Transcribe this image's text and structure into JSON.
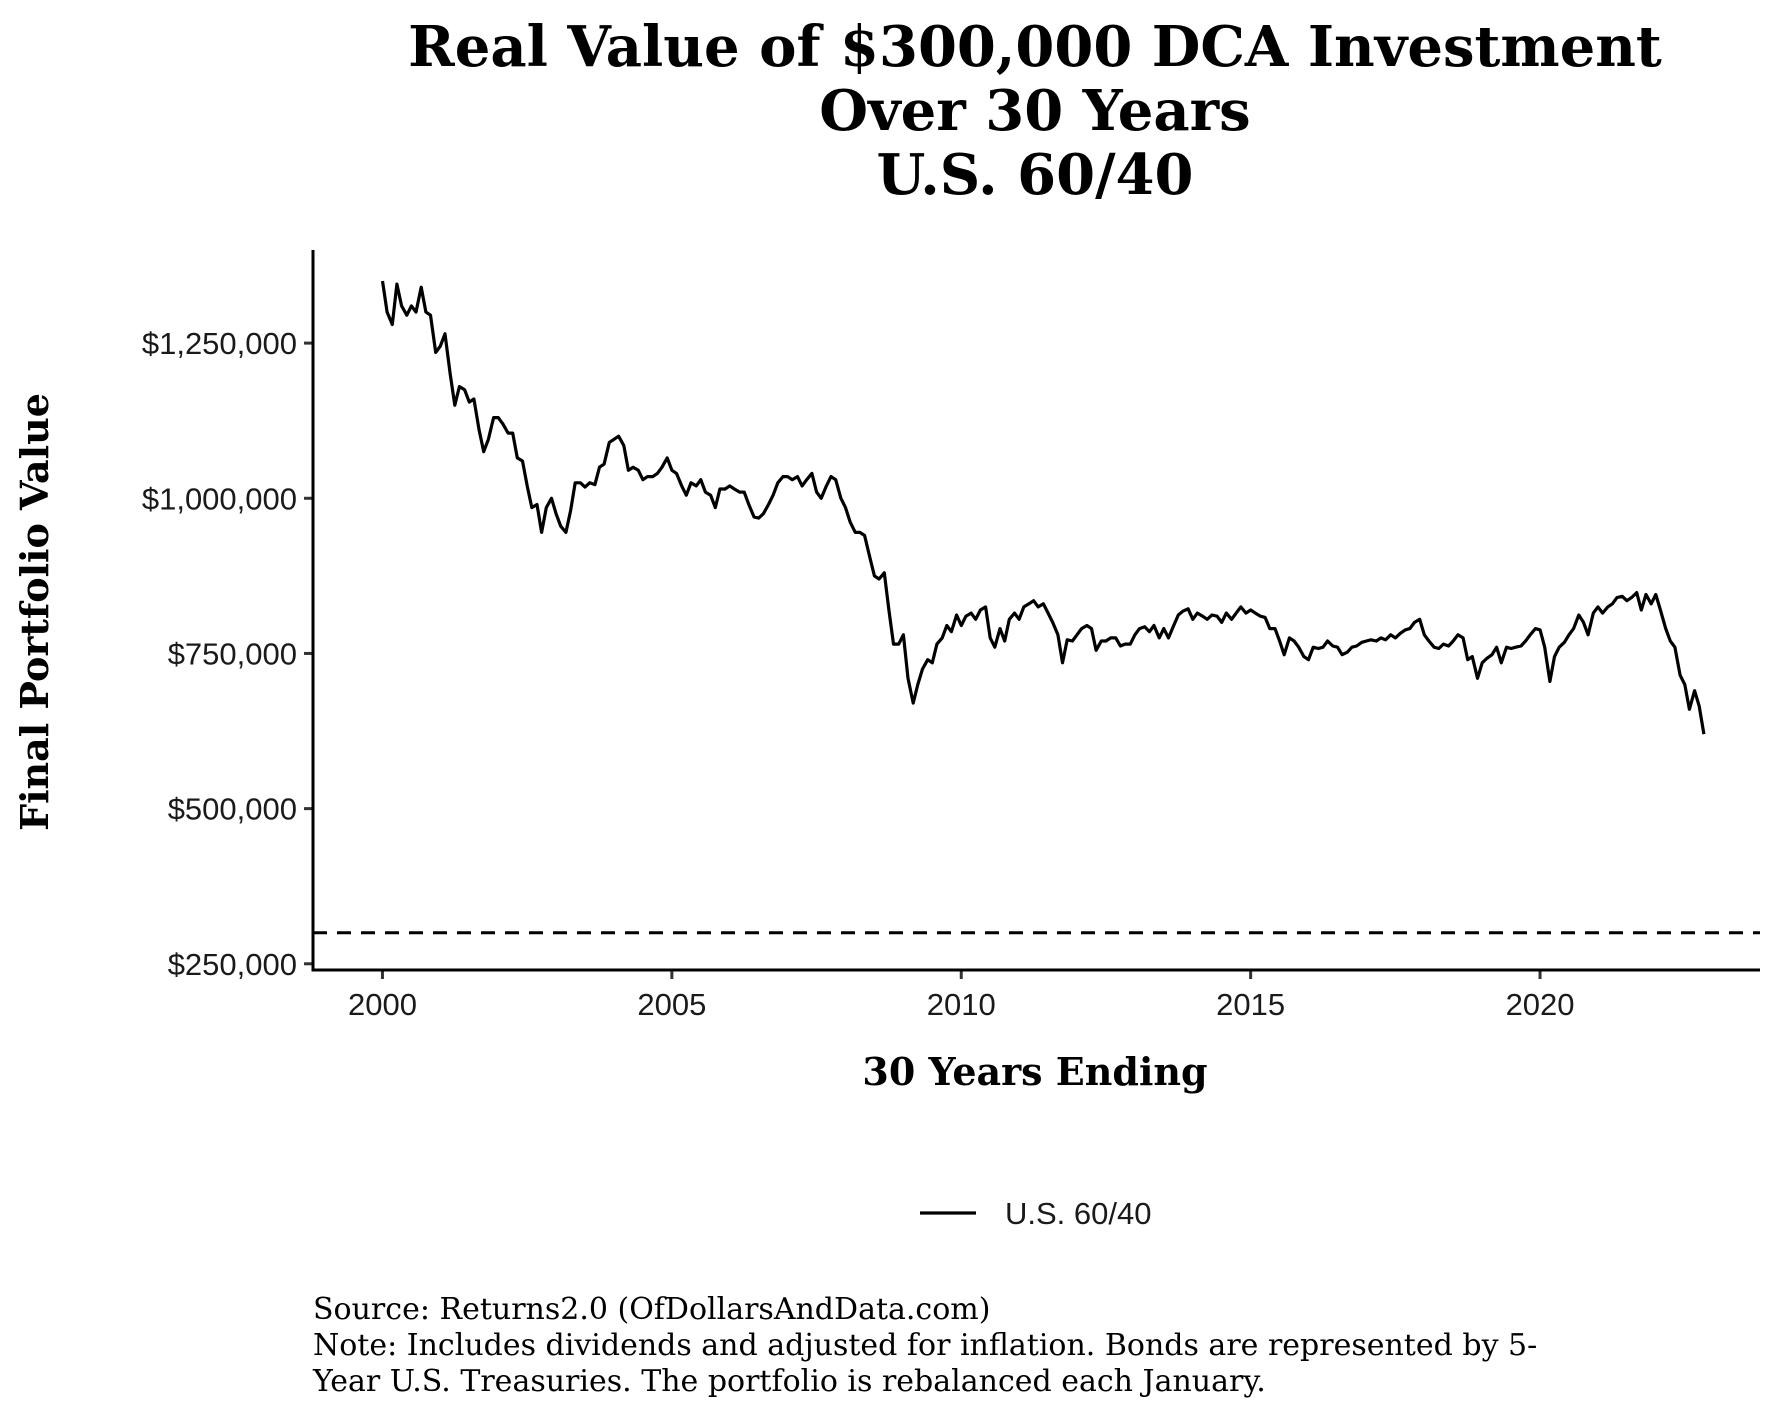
{
  "chart_data": {
    "type": "line",
    "title": [
      "Real Value of $300,000 DCA Investment",
      "Over 30 Years",
      "U.S. 60/40"
    ],
    "xlabel": "30 Years Ending",
    "ylabel": "Final Portfolio Value",
    "xlim": [
      1998.8,
      2023.8
    ],
    "ylim": [
      240000,
      1400000
    ],
    "x_ticks": [
      2000,
      2005,
      2010,
      2015,
      2020
    ],
    "x_tick_labels": [
      "2000",
      "2005",
      "2010",
      "2015",
      "2020"
    ],
    "y_ticks": [
      250000,
      500000,
      750000,
      1000000,
      1250000
    ],
    "y_tick_labels": [
      "$250,000",
      "$500,000",
      "$750,000",
      "$1,000,000",
      "$1,250,000"
    ],
    "grid": false,
    "legend": {
      "position": "bottom",
      "entries": [
        "U.S. 60/40"
      ]
    },
    "reference_line": {
      "y": 300000,
      "style": "dashed"
    },
    "series": [
      {
        "name": "U.S. 60/40",
        "color": "#000000",
        "points": [
          [
            2000.0,
            1350000
          ],
          [
            2000.08,
            1300000
          ],
          [
            2000.17,
            1280000
          ],
          [
            2000.25,
            1345000
          ],
          [
            2000.33,
            1310000
          ],
          [
            2000.42,
            1295000
          ],
          [
            2000.5,
            1310000
          ],
          [
            2000.58,
            1300000
          ],
          [
            2000.67,
            1340000
          ],
          [
            2000.75,
            1300000
          ],
          [
            2000.83,
            1295000
          ],
          [
            2000.92,
            1235000
          ],
          [
            2001.0,
            1245000
          ],
          [
            2001.08,
            1265000
          ],
          [
            2001.17,
            1200000
          ],
          [
            2001.25,
            1150000
          ],
          [
            2001.33,
            1180000
          ],
          [
            2001.42,
            1175000
          ],
          [
            2001.5,
            1155000
          ],
          [
            2001.58,
            1160000
          ],
          [
            2001.67,
            1110000
          ],
          [
            2001.75,
            1075000
          ],
          [
            2001.83,
            1095000
          ],
          [
            2001.92,
            1130000
          ],
          [
            2002.0,
            1130000
          ],
          [
            2002.08,
            1120000
          ],
          [
            2002.17,
            1105000
          ],
          [
            2002.25,
            1105000
          ],
          [
            2002.33,
            1065000
          ],
          [
            2002.42,
            1060000
          ],
          [
            2002.5,
            1020000
          ],
          [
            2002.58,
            985000
          ],
          [
            2002.67,
            990000
          ],
          [
            2002.75,
            945000
          ],
          [
            2002.83,
            985000
          ],
          [
            2002.92,
            1000000
          ],
          [
            2003.0,
            975000
          ],
          [
            2003.08,
            955000
          ],
          [
            2003.17,
            945000
          ],
          [
            2003.25,
            980000
          ],
          [
            2003.33,
            1025000
          ],
          [
            2003.42,
            1025000
          ],
          [
            2003.5,
            1018000
          ],
          [
            2003.58,
            1025000
          ],
          [
            2003.67,
            1022000
          ],
          [
            2003.75,
            1050000
          ],
          [
            2003.83,
            1055000
          ],
          [
            2003.92,
            1090000
          ],
          [
            2004.0,
            1095000
          ],
          [
            2004.08,
            1100000
          ],
          [
            2004.17,
            1085000
          ],
          [
            2004.25,
            1045000
          ],
          [
            2004.33,
            1050000
          ],
          [
            2004.42,
            1045000
          ],
          [
            2004.5,
            1030000
          ],
          [
            2004.58,
            1035000
          ],
          [
            2004.67,
            1035000
          ],
          [
            2004.75,
            1040000
          ],
          [
            2004.83,
            1050000
          ],
          [
            2004.92,
            1065000
          ],
          [
            2005.0,
            1045000
          ],
          [
            2005.08,
            1040000
          ],
          [
            2005.17,
            1020000
          ],
          [
            2005.25,
            1005000
          ],
          [
            2005.33,
            1025000
          ],
          [
            2005.42,
            1020000
          ],
          [
            2005.5,
            1030000
          ],
          [
            2005.58,
            1010000
          ],
          [
            2005.67,
            1005000
          ],
          [
            2005.75,
            985000
          ],
          [
            2005.83,
            1015000
          ],
          [
            2005.92,
            1015000
          ],
          [
            2006.0,
            1020000
          ],
          [
            2006.08,
            1015000
          ],
          [
            2006.17,
            1010000
          ],
          [
            2006.25,
            1010000
          ],
          [
            2006.33,
            990000
          ],
          [
            2006.42,
            970000
          ],
          [
            2006.5,
            968000
          ],
          [
            2006.58,
            975000
          ],
          [
            2006.67,
            990000
          ],
          [
            2006.75,
            1005000
          ],
          [
            2006.83,
            1025000
          ],
          [
            2006.92,
            1035000
          ],
          [
            2007.0,
            1035000
          ],
          [
            2007.08,
            1030000
          ],
          [
            2007.17,
            1035000
          ],
          [
            2007.25,
            1020000
          ],
          [
            2007.33,
            1030000
          ],
          [
            2007.42,
            1040000
          ],
          [
            2007.5,
            1010000
          ],
          [
            2007.58,
            1000000
          ],
          [
            2007.67,
            1020000
          ],
          [
            2007.75,
            1035000
          ],
          [
            2007.83,
            1030000
          ],
          [
            2007.92,
            1000000
          ],
          [
            2008.0,
            985000
          ],
          [
            2008.08,
            962000
          ],
          [
            2008.17,
            945000
          ],
          [
            2008.25,
            945000
          ],
          [
            2008.33,
            940000
          ],
          [
            2008.42,
            905000
          ],
          [
            2008.5,
            875000
          ],
          [
            2008.58,
            870000
          ],
          [
            2008.67,
            880000
          ],
          [
            2008.75,
            820000
          ],
          [
            2008.83,
            765000
          ],
          [
            2008.92,
            765000
          ],
          [
            2009.0,
            780000
          ],
          [
            2009.08,
            710000
          ],
          [
            2009.17,
            670000
          ],
          [
            2009.25,
            700000
          ],
          [
            2009.33,
            725000
          ],
          [
            2009.42,
            740000
          ],
          [
            2009.5,
            735000
          ],
          [
            2009.58,
            765000
          ],
          [
            2009.67,
            775000
          ],
          [
            2009.75,
            795000
          ],
          [
            2009.83,
            785000
          ],
          [
            2009.92,
            812000
          ],
          [
            2010.0,
            795000
          ],
          [
            2010.08,
            810000
          ],
          [
            2010.17,
            815000
          ],
          [
            2010.25,
            805000
          ],
          [
            2010.33,
            820000
          ],
          [
            2010.42,
            825000
          ],
          [
            2010.5,
            775000
          ],
          [
            2010.58,
            760000
          ],
          [
            2010.67,
            790000
          ],
          [
            2010.75,
            770000
          ],
          [
            2010.83,
            805000
          ],
          [
            2010.92,
            815000
          ],
          [
            2011.0,
            805000
          ],
          [
            2011.08,
            825000
          ],
          [
            2011.17,
            830000
          ],
          [
            2011.25,
            835000
          ],
          [
            2011.33,
            825000
          ],
          [
            2011.42,
            830000
          ],
          [
            2011.5,
            815000
          ],
          [
            2011.58,
            800000
          ],
          [
            2011.67,
            780000
          ],
          [
            2011.75,
            735000
          ],
          [
            2011.83,
            772000
          ],
          [
            2011.92,
            770000
          ],
          [
            2012.0,
            780000
          ],
          [
            2012.08,
            790000
          ],
          [
            2012.17,
            795000
          ],
          [
            2012.25,
            790000
          ],
          [
            2012.33,
            755000
          ],
          [
            2012.42,
            770000
          ],
          [
            2012.5,
            770000
          ],
          [
            2012.58,
            775000
          ],
          [
            2012.67,
            775000
          ],
          [
            2012.75,
            762000
          ],
          [
            2012.83,
            765000
          ],
          [
            2012.92,
            765000
          ],
          [
            2013.0,
            780000
          ],
          [
            2013.08,
            790000
          ],
          [
            2013.17,
            793000
          ],
          [
            2013.25,
            785000
          ],
          [
            2013.33,
            795000
          ],
          [
            2013.42,
            775000
          ],
          [
            2013.5,
            790000
          ],
          [
            2013.58,
            775000
          ],
          [
            2013.67,
            795000
          ],
          [
            2013.75,
            812000
          ],
          [
            2013.83,
            818000
          ],
          [
            2013.92,
            822000
          ],
          [
            2014.0,
            805000
          ],
          [
            2014.08,
            815000
          ],
          [
            2014.17,
            810000
          ],
          [
            2014.25,
            805000
          ],
          [
            2014.33,
            812000
          ],
          [
            2014.42,
            810000
          ],
          [
            2014.5,
            800000
          ],
          [
            2014.58,
            815000
          ],
          [
            2014.67,
            805000
          ],
          [
            2014.75,
            815000
          ],
          [
            2014.83,
            825000
          ],
          [
            2014.92,
            815000
          ],
          [
            2015.0,
            820000
          ],
          [
            2015.08,
            815000
          ],
          [
            2015.17,
            810000
          ],
          [
            2015.25,
            808000
          ],
          [
            2015.33,
            790000
          ],
          [
            2015.42,
            790000
          ],
          [
            2015.5,
            770000
          ],
          [
            2015.58,
            748000
          ],
          [
            2015.67,
            775000
          ],
          [
            2015.75,
            770000
          ],
          [
            2015.83,
            760000
          ],
          [
            2015.92,
            745000
          ],
          [
            2016.0,
            740000
          ],
          [
            2016.08,
            760000
          ],
          [
            2016.17,
            758000
          ],
          [
            2016.25,
            760000
          ],
          [
            2016.33,
            770000
          ],
          [
            2016.42,
            762000
          ],
          [
            2016.5,
            760000
          ],
          [
            2016.58,
            748000
          ],
          [
            2016.67,
            752000
          ],
          [
            2016.75,
            760000
          ],
          [
            2016.83,
            762000
          ],
          [
            2016.92,
            768000
          ],
          [
            2017.0,
            770000
          ],
          [
            2017.08,
            772000
          ],
          [
            2017.17,
            770000
          ],
          [
            2017.25,
            775000
          ],
          [
            2017.33,
            772000
          ],
          [
            2017.42,
            780000
          ],
          [
            2017.5,
            775000
          ],
          [
            2017.58,
            782000
          ],
          [
            2017.67,
            788000
          ],
          [
            2017.75,
            790000
          ],
          [
            2017.83,
            800000
          ],
          [
            2017.92,
            805000
          ],
          [
            2018.0,
            780000
          ],
          [
            2018.08,
            770000
          ],
          [
            2018.17,
            760000
          ],
          [
            2018.25,
            758000
          ],
          [
            2018.33,
            765000
          ],
          [
            2018.42,
            762000
          ],
          [
            2018.5,
            770000
          ],
          [
            2018.58,
            780000
          ],
          [
            2018.67,
            775000
          ],
          [
            2018.75,
            740000
          ],
          [
            2018.83,
            745000
          ],
          [
            2018.92,
            710000
          ],
          [
            2019.0,
            735000
          ],
          [
            2019.08,
            742000
          ],
          [
            2019.17,
            748000
          ],
          [
            2019.25,
            760000
          ],
          [
            2019.33,
            735000
          ],
          [
            2019.42,
            760000
          ],
          [
            2019.5,
            758000
          ],
          [
            2019.58,
            760000
          ],
          [
            2019.67,
            762000
          ],
          [
            2019.75,
            770000
          ],
          [
            2019.83,
            780000
          ],
          [
            2019.92,
            790000
          ],
          [
            2020.0,
            788000
          ],
          [
            2020.08,
            760000
          ],
          [
            2020.17,
            705000
          ],
          [
            2020.25,
            745000
          ],
          [
            2020.33,
            760000
          ],
          [
            2020.42,
            768000
          ],
          [
            2020.5,
            780000
          ],
          [
            2020.58,
            790000
          ],
          [
            2020.67,
            812000
          ],
          [
            2020.75,
            800000
          ],
          [
            2020.83,
            780000
          ],
          [
            2020.92,
            815000
          ],
          [
            2021.0,
            825000
          ],
          [
            2021.08,
            815000
          ],
          [
            2021.17,
            825000
          ],
          [
            2021.25,
            830000
          ],
          [
            2021.33,
            840000
          ],
          [
            2021.42,
            842000
          ],
          [
            2021.5,
            835000
          ],
          [
            2021.58,
            840000
          ],
          [
            2021.67,
            848000
          ],
          [
            2021.75,
            820000
          ],
          [
            2021.83,
            845000
          ],
          [
            2021.92,
            830000
          ],
          [
            2022.0,
            845000
          ],
          [
            2022.08,
            820000
          ],
          [
            2022.17,
            790000
          ],
          [
            2022.25,
            770000
          ],
          [
            2022.33,
            760000
          ],
          [
            2022.42,
            715000
          ],
          [
            2022.5,
            700000
          ],
          [
            2022.58,
            660000
          ],
          [
            2022.67,
            690000
          ],
          [
            2022.75,
            665000
          ],
          [
            2022.83,
            620000
          ]
        ]
      }
    ],
    "source": "Source: Returns2.0 (OfDollarsAndData.com)",
    "note_lines": [
      "Note: Includes dividends and adjusted for inflation. Bonds are represented by 5-",
      "Year U.S. Treasuries. The portfolio is rebalanced each January."
    ]
  }
}
